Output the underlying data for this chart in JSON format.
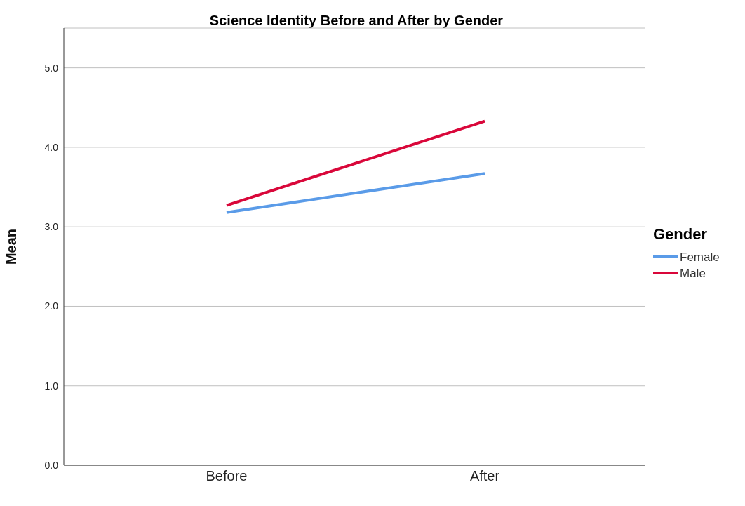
{
  "chart_data": {
    "type": "line",
    "title": "Science Identity Before and After by Gender",
    "ylabel": "Mean",
    "legend_title": "Gender",
    "categories": [
      "Before",
      "After"
    ],
    "series": [
      {
        "name": "Female",
        "color": "#5a9be8",
        "values": [
          3.18,
          3.67
        ]
      },
      {
        "name": "Male",
        "color": "#d9073a",
        "values": [
          3.27,
          4.33
        ]
      }
    ],
    "ylim": [
      0,
      5.5
    ],
    "yticks": [
      {
        "value": 0,
        "label": "0.0"
      },
      {
        "value": 1,
        "label": "1.0"
      },
      {
        "value": 2,
        "label": "2.0"
      },
      {
        "value": 3,
        "label": "3.0"
      },
      {
        "value": 4,
        "label": "4.0"
      },
      {
        "value": 5,
        "label": "5.0"
      }
    ],
    "grid": "y",
    "legend": "right",
    "marker": "none",
    "line_style": "solid"
  }
}
